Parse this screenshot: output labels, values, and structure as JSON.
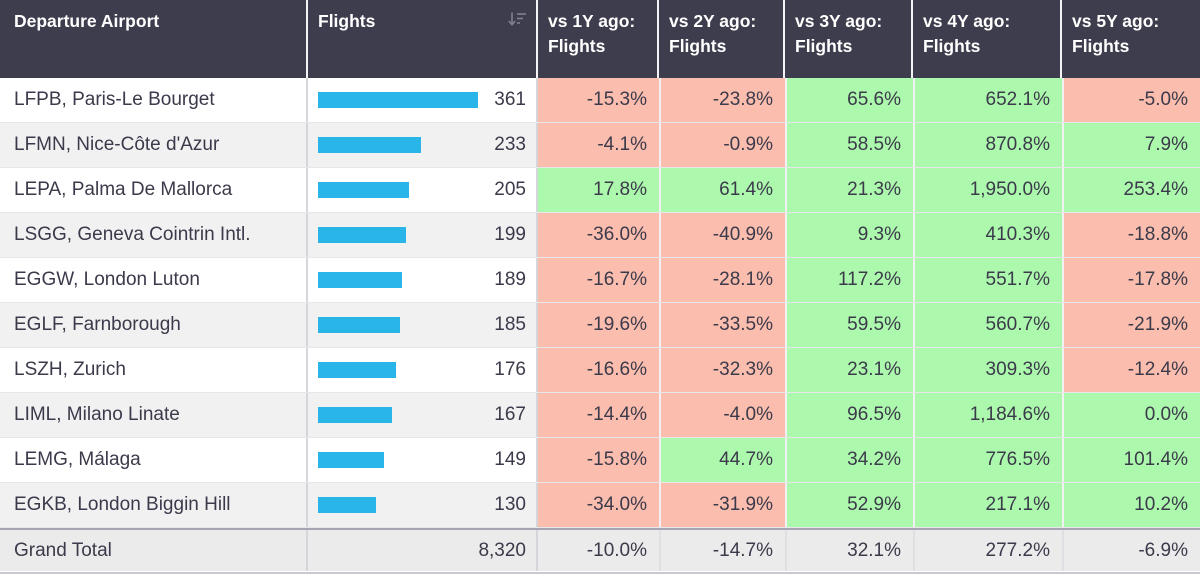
{
  "colors": {
    "header_bg": "#3e3d4d",
    "header_text": "#ffffff",
    "text": "#3b3a4a",
    "negative_bg": "#fbbdad",
    "positive_bg": "#acf8ad",
    "bar": "#29b5e8",
    "alt_row_bg": "#f1f1f2",
    "total_row_bg": "#ebebeb"
  },
  "table": {
    "columns": [
      {
        "label": "Departure Airport"
      },
      {
        "label": "Flights",
        "sort_icon": "sort-descending"
      },
      {
        "label": "vs 1Y ago: Flights"
      },
      {
        "label": "vs 2Y ago: Flights"
      },
      {
        "label": "vs 3Y ago: Flights"
      },
      {
        "label": "vs 4Y ago: Flights"
      },
      {
        "label": "vs 5Y ago: Flights"
      }
    ],
    "rows": [
      {
        "airport": "LFPB, Paris-Le Bourget",
        "flights": 361,
        "flights_display": "361",
        "pcts": [
          "-15.3%",
          "-23.8%",
          "65.6%",
          "652.1%",
          "-5.0%"
        ]
      },
      {
        "airport": "LFMN, Nice-Côte d'Azur",
        "flights": 233,
        "flights_display": "233",
        "pcts": [
          "-4.1%",
          "-0.9%",
          "58.5%",
          "870.8%",
          "7.9%"
        ]
      },
      {
        "airport": "LEPA, Palma De Mallorca",
        "flights": 205,
        "flights_display": "205",
        "pcts": [
          "17.8%",
          "61.4%",
          "21.3%",
          "1,950.0%",
          "253.4%"
        ]
      },
      {
        "airport": "LSGG, Geneva Cointrin Intl.",
        "flights": 199,
        "flights_display": "199",
        "pcts": [
          "-36.0%",
          "-40.9%",
          "9.3%",
          "410.3%",
          "-18.8%"
        ]
      },
      {
        "airport": "EGGW, London Luton",
        "flights": 189,
        "flights_display": "189",
        "pcts": [
          "-16.7%",
          "-28.1%",
          "117.2%",
          "551.7%",
          "-17.8%"
        ]
      },
      {
        "airport": "EGLF, Farnborough",
        "flights": 185,
        "flights_display": "185",
        "pcts": [
          "-19.6%",
          "-33.5%",
          "59.5%",
          "560.7%",
          "-21.9%"
        ]
      },
      {
        "airport": "LSZH, Zurich",
        "flights": 176,
        "flights_display": "176",
        "pcts": [
          "-16.6%",
          "-32.3%",
          "23.1%",
          "309.3%",
          "-12.4%"
        ]
      },
      {
        "airport": "LIML, Milano Linate",
        "flights": 167,
        "flights_display": "167",
        "pcts": [
          "-14.4%",
          "-4.0%",
          "96.5%",
          "1,184.6%",
          "0.0%"
        ]
      },
      {
        "airport": "LEMG, Málaga",
        "flights": 149,
        "flights_display": "149",
        "pcts": [
          "-15.8%",
          "44.7%",
          "34.2%",
          "776.5%",
          "101.4%"
        ]
      },
      {
        "airport": "EGKB, London Biggin Hill",
        "flights": 130,
        "flights_display": "130",
        "pcts": [
          "-34.0%",
          "-31.9%",
          "52.9%",
          "217.1%",
          "10.2%"
        ]
      }
    ],
    "grand_total": {
      "label": "Grand Total",
      "flights_display": "8,320",
      "pcts": [
        "-10.0%",
        "-14.7%",
        "32.1%",
        "277.2%",
        "-6.9%"
      ]
    }
  }
}
